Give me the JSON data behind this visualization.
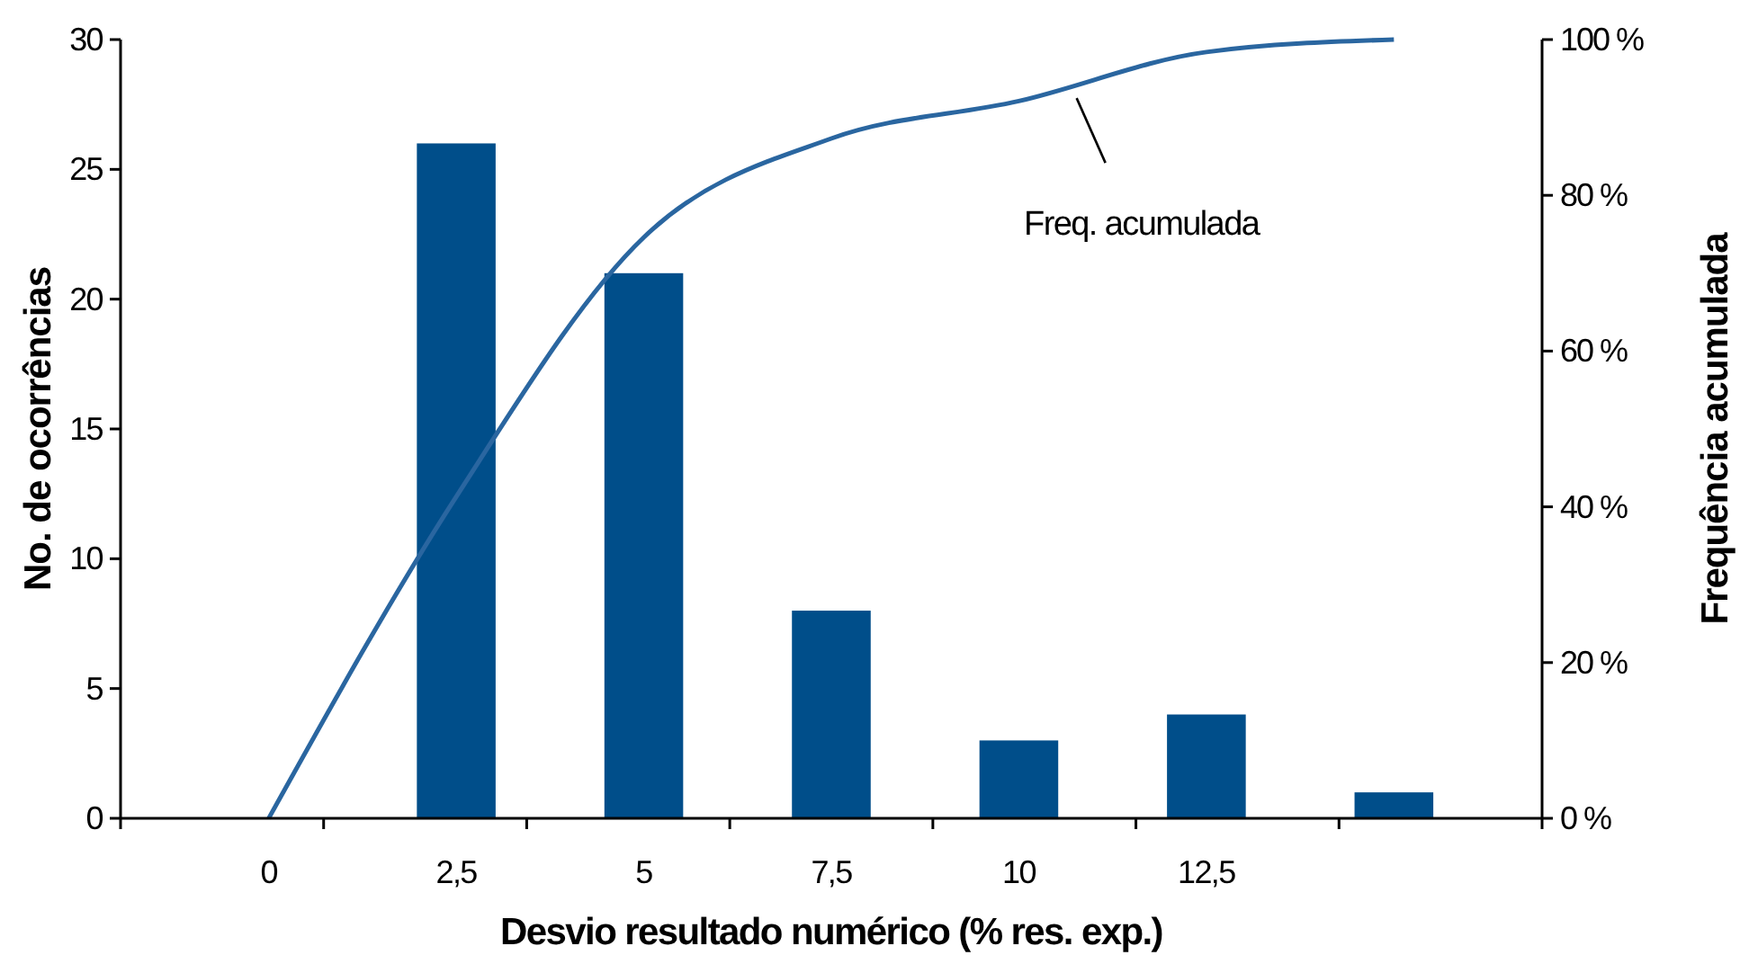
{
  "chart_data": {
    "type": "bar",
    "xlabel": "Desvio resultado numérico (% res. exp.)",
    "ylabel": "No. de ocorrências",
    "y2label": "Frequência acumulada",
    "categories": [
      "0",
      "2,5",
      "5",
      "7,5",
      "10",
      "12,5",
      null
    ],
    "series": [
      {
        "color": "#004e8a",
        "values": [
          0,
          26,
          21,
          8,
          3,
          4,
          1
        ]
      },
      {
        "type": "line",
        "name": "Freq. acumulada",
        "axis": "y2",
        "color": "#2a66a0",
        "values": [
          0,
          41.3,
          74.6,
          87.3,
          92.1,
          98.4,
          100
        ]
      }
    ],
    "ylim": [
      0,
      30
    ],
    "yticks": [
      0,
      5,
      10,
      15,
      20,
      25,
      30
    ],
    "y2lim": [
      0,
      100
    ],
    "y2ticks": [
      {
        "value": 0,
        "label": "0 %"
      },
      {
        "value": 20,
        "label": "20 %"
      },
      {
        "value": 40,
        "label": "40 %"
      },
      {
        "value": 60,
        "label": "60 %"
      },
      {
        "value": 80,
        "label": "80 %"
      },
      {
        "value": 100,
        "label": "100 %"
      }
    ],
    "grid": false,
    "marker": "none",
    "line_style": "solid"
  }
}
